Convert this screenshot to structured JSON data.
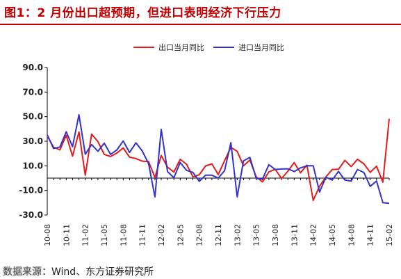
{
  "title": "图1：2 月份出口超预期，但进口表明经济下行压力",
  "source": {
    "label": "数据来源",
    "text": "：Wind、东方证券研究所"
  },
  "colors": {
    "title": "#c00000",
    "export": "#e41a1c",
    "import": "#3333cc",
    "axis": "#000000"
  },
  "chart_data": {
    "type": "line",
    "title": "",
    "xlabel": "",
    "ylabel": "",
    "ylim": [
      -30,
      90
    ],
    "yticks": [
      "90.0",
      "70.0",
      "50.0",
      "30.0",
      "10.0",
      "-10.0",
      "-30.0"
    ],
    "ytick_values": [
      90,
      70,
      50,
      30,
      10,
      -10,
      -30
    ],
    "grid": false,
    "legend_position": "top-center",
    "x": [
      "10-08",
      "10-09",
      "10-10",
      "10-11",
      "10-12",
      "11-01",
      "11-02",
      "11-03",
      "11-04",
      "11-05",
      "11-06",
      "11-07",
      "11-08",
      "11-09",
      "11-10",
      "11-11",
      "11-12",
      "12-01",
      "12-02",
      "12-03",
      "12-04",
      "12-05",
      "12-06",
      "12-07",
      "12-08",
      "12-09",
      "12-10",
      "12-11",
      "12-12",
      "13-01",
      "13-02",
      "13-03",
      "13-04",
      "13-05",
      "13-06",
      "13-07",
      "13-08",
      "13-09",
      "13-10",
      "13-11",
      "13-12",
      "14-01",
      "14-02",
      "14-03",
      "14-04",
      "14-05",
      "14-06",
      "14-07",
      "14-08",
      "14-09",
      "14-10",
      "14-11",
      "14-12",
      "15-01",
      "15-02"
    ],
    "xtick_labels": [
      "10-08",
      "10-11",
      "11-02",
      "11-05",
      "11-08",
      "11-11",
      "12-02",
      "12-05",
      "12-08",
      "12-11",
      "13-02",
      "13-05",
      "13-08",
      "13-11",
      "14-02",
      "14-05",
      "14-08",
      "14-11",
      "15-02"
    ],
    "series": [
      {
        "name": "出口当月同比",
        "color": "#e41a1c",
        "values": [
          34.3,
          25.2,
          22.9,
          34.8,
          17.9,
          37.6,
          2.3,
          35.8,
          29.8,
          19.3,
          17.6,
          20.4,
          24.5,
          17.1,
          15.9,
          13.8,
          13.4,
          0.5,
          18.4,
          8.9,
          4.9,
          15.3,
          11.3,
          1.0,
          2.7,
          9.9,
          11.6,
          2.9,
          14.1,
          25.0,
          21.8,
          10.0,
          14.7,
          1.0,
          -3.1,
          5.1,
          7.2,
          -0.3,
          5.6,
          12.7,
          4.3,
          10.6,
          -18.1,
          -6.6,
          0.9,
          7.0,
          7.2,
          14.5,
          9.4,
          15.3,
          11.6,
          4.7,
          9.7,
          -3.3,
          48.3
        ]
      },
      {
        "name": "进口当月同比",
        "color": "#3333cc",
        "values": [
          35.2,
          24.1,
          25.3,
          37.7,
          25.6,
          51.6,
          19.4,
          27.3,
          21.8,
          28.4,
          19.3,
          22.9,
          30.2,
          20.9,
          28.7,
          22.1,
          11.8,
          -15.3,
          39.6,
          5.3,
          0.3,
          12.7,
          6.3,
          4.7,
          -2.6,
          2.4,
          2.4,
          0.0,
          6.0,
          28.8,
          -15.2,
          14.1,
          16.8,
          -0.3,
          -0.7,
          10.9,
          7.0,
          7.4,
          7.6,
          5.3,
          8.3,
          10.0,
          10.1,
          -11.3,
          0.8,
          -1.6,
          5.5,
          -1.6,
          -2.4,
          7.0,
          4.6,
          -6.7,
          -2.4,
          -19.9,
          -20.5
        ]
      }
    ]
  }
}
